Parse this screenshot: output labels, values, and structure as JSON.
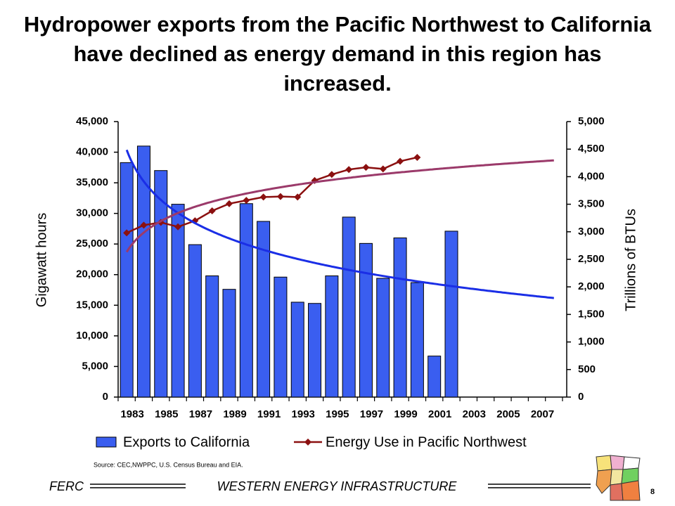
{
  "chart_data": {
    "type": "bar",
    "title": "Hydropower exports from the Pacific Northwest to California have declined as energy demand in this region has increased.",
    "y_label": "Gigawatt hours",
    "y2_label": "Trillions of BTUs",
    "categories": [
      "1983",
      null,
      "1985",
      null,
      "1987",
      null,
      "1989",
      null,
      "1991",
      null,
      "1993",
      null,
      "1995",
      null,
      "1997",
      null,
      "1999",
      null,
      "2001",
      null,
      "2003",
      null,
      "2005",
      null,
      "2007",
      null
    ],
    "series": [
      {
        "name": "Exports to California",
        "color": "#3a5ef0",
        "trend_color": "#1a2ee6",
        "values": [
          38300,
          41000,
          37000,
          31500,
          24900,
          19800,
          17600,
          31600,
          28700,
          19600,
          15500,
          15300,
          19800,
          29400,
          25100,
          19400,
          26000,
          18700,
          6700,
          27100,
          null,
          null,
          null,
          null,
          null,
          null
        ]
      },
      {
        "name": "Energy Use in Pacific Northwest",
        "type": "line",
        "axis": "y2",
        "color": "#8b1010",
        "trend_color": "#9b3a6a",
        "values": [
          2980,
          3120,
          3170,
          3090,
          3200,
          3380,
          3510,
          3570,
          3630,
          3640,
          3630,
          3930,
          4040,
          4130,
          4170,
          4140,
          4280,
          4350,
          null,
          null,
          null,
          null,
          null,
          null,
          null,
          null
        ]
      }
    ],
    "ylim": [
      0,
      45000
    ],
    "yticks": [
      0,
      {
        "value": 5000,
        "label": "5,000"
      },
      {
        "value": 10000,
        "label": "10,000"
      },
      {
        "value": 15000,
        "label": "15,000"
      },
      {
        "value": 20000,
        "label": "20,000"
      },
      {
        "value": 25000,
        "label": "25,000"
      },
      {
        "value": 30000,
        "label": "30,000"
      },
      {
        "value": 35000,
        "label": "35,000"
      },
      {
        "value": 40000,
        "label": "40,000"
      },
      {
        "value": 45000,
        "label": "45,000"
      }
    ],
    "y2lim": [
      0,
      5000
    ],
    "y2ticks": [
      0,
      500,
      {
        "value": 1000,
        "label": "1,000"
      },
      {
        "value": 1500,
        "label": "1,500"
      },
      {
        "value": 2000,
        "label": "2,000"
      },
      {
        "value": 2500,
        "label": "2,500"
      },
      {
        "value": 3000,
        "label": "3,000"
      },
      {
        "value": 3500,
        "label": "3,500"
      },
      {
        "value": 4000,
        "label": "4,000"
      },
      {
        "value": 4500,
        "label": "4,500"
      },
      {
        "value": 5000,
        "label": "5,000"
      }
    ],
    "trendline": "logarithmic",
    "legend": "bottom",
    "source": "Source:  CEC,NWPPC,  U.S. Census Bureau and EIA."
  },
  "footer": {
    "left": "FERC",
    "center": "WESTERN ENERGY INFRASTRUCTURE",
    "page": "8"
  }
}
